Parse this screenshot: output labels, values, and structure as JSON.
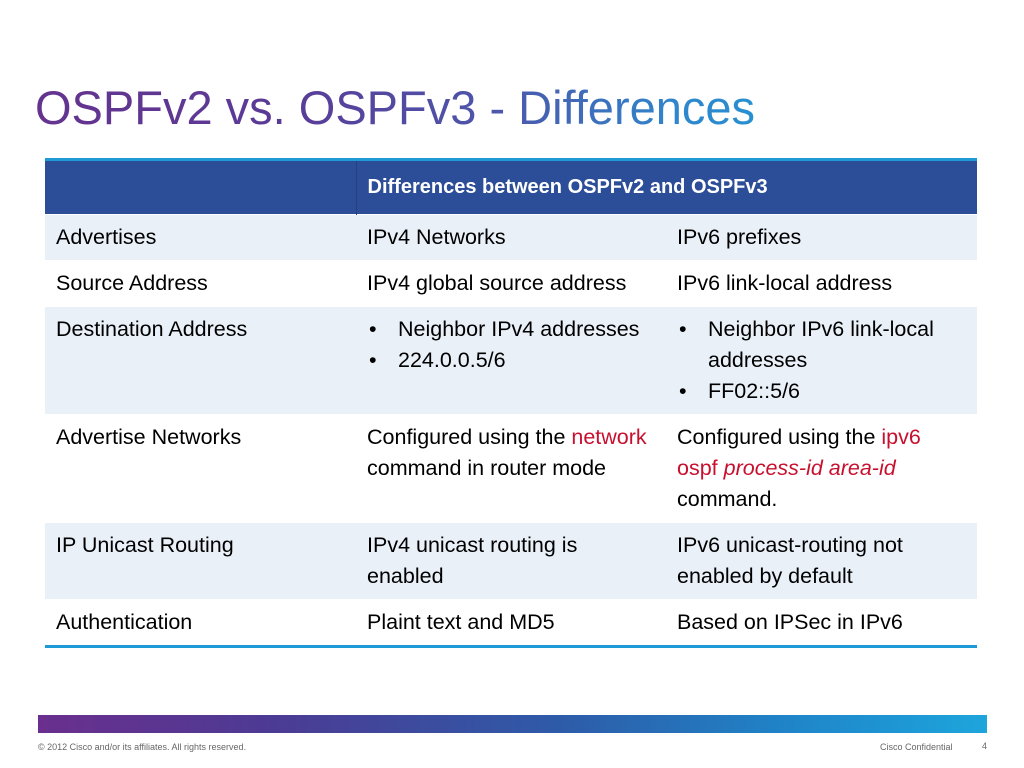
{
  "title": "OSPFv2 vs. OSPFv3 - Differences",
  "table": {
    "header": {
      "blank": "",
      "title": "Differences between OSPFv2 and OSPFv3"
    },
    "rows": [
      {
        "label": "Advertises",
        "v2": "IPv4 Networks",
        "v3": "IPv6 prefixes"
      },
      {
        "label": "Source Address",
        "v2": "IPv4 global source address",
        "v3": "IPv6 link-local address"
      },
      {
        "label": "Destination Address",
        "v2_bullets": [
          "Neighbor IPv4 addresses",
          "224.0.0.5/6"
        ],
        "v3_bullets": [
          "Neighbor IPv6 link-local addresses",
          "FF02::5/6"
        ]
      },
      {
        "label": "Advertise Networks",
        "v2": {
          "pre": "Configured using the ",
          "cmd": "network",
          "post": " command in router mode"
        },
        "v3": {
          "pre": "Configured using the ",
          "cmd": "ipv6 ospf",
          "space": " ",
          "args": "process-id area-id",
          "post": " command."
        }
      },
      {
        "label": "IP Unicast Routing",
        "v2": "IPv4 unicast routing is enabled",
        "v3": "IPv6 unicast-routing not enabled by default"
      },
      {
        "label": "Authentication",
        "v2": "Plaint text and MD5",
        "v3": "Based on IPSec in IPv6"
      }
    ]
  },
  "footer": {
    "copyright": "© 2012 Cisco and/or its affiliates. All rights reserved.",
    "confidential": "Cisco Confidential",
    "page_number": "4"
  },
  "colors": {
    "header_bg": "#2c4d97",
    "header_accent": "#1e9ad6",
    "row_shade": "#e9f0f8",
    "command_red": "#c8102e",
    "title_gradient_start": "#64338f",
    "title_gradient_end": "#1e9ad6"
  }
}
